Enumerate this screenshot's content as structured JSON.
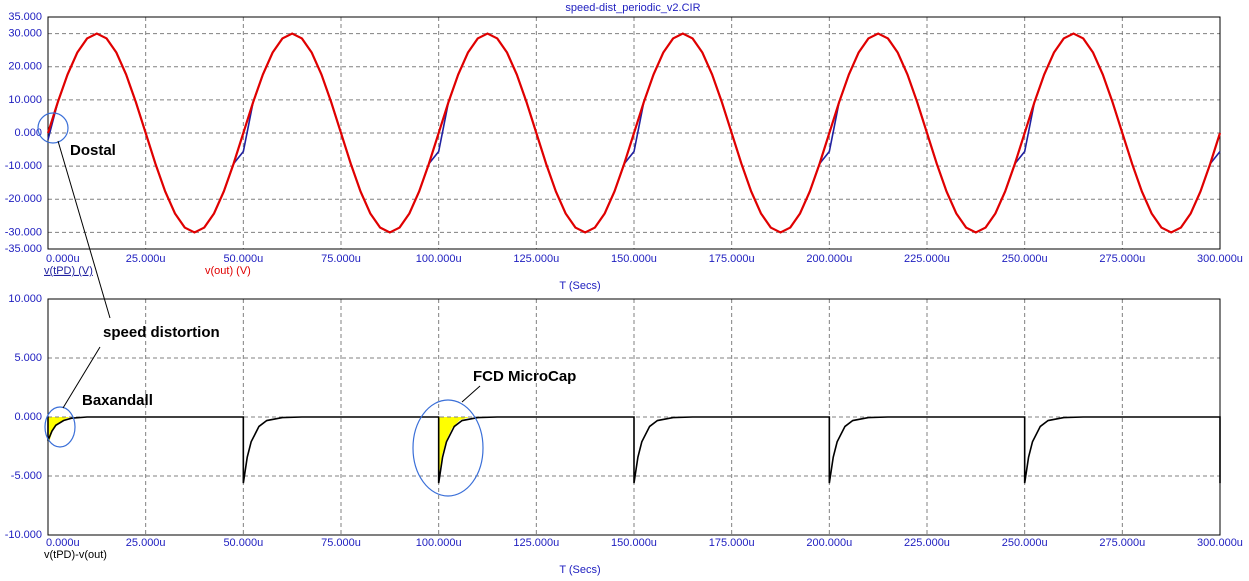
{
  "chart_data": [
    {
      "type": "line",
      "title": "speed-dist_periodic_v2.CIR",
      "xlabel": "T (Secs)",
      "xlim": [
        0,
        300
      ],
      "ylim": [
        -35,
        35
      ],
      "grid": true,
      "xticks": [
        {
          "value": 0,
          "label": "0.000u"
        },
        {
          "value": 25,
          "label": "25.000u"
        },
        {
          "value": 50,
          "label": "50.000u"
        },
        {
          "value": 75,
          "label": "75.000u"
        },
        {
          "value": 100,
          "label": "100.000u"
        },
        {
          "value": 125,
          "label": "125.000u"
        },
        {
          "value": 150,
          "label": "150.000u"
        },
        {
          "value": 175,
          "label": "175.000u"
        },
        {
          "value": 200,
          "label": "200.000u"
        },
        {
          "value": 225,
          "label": "225.000u"
        },
        {
          "value": 250,
          "label": "250.000u"
        },
        {
          "value": 275,
          "label": "275.000u"
        },
        {
          "value": 300,
          "label": "300.000u"
        }
      ],
      "yticks": [
        {
          "value": 35,
          "label": "35.000"
        },
        {
          "value": 30,
          "label": "30.000"
        },
        {
          "value": 20,
          "label": "20.000"
        },
        {
          "value": 10,
          "label": "10.000"
        },
        {
          "value": 0,
          "label": "0.000"
        },
        {
          "value": -10,
          "label": "-10.000"
        },
        {
          "value": -20,
          "label": "-20.000"
        },
        {
          "value": -30,
          "label": "-30.000"
        },
        {
          "value": -35,
          "label": "-35.000"
        }
      ],
      "annotations": [
        "Dostal",
        "speed distortion"
      ],
      "x": [
        0,
        2.5,
        5,
        7.5,
        10,
        12.5,
        15,
        17.5,
        20,
        22.5,
        25,
        27.5,
        30,
        32.5,
        35,
        37.5,
        40,
        42.5,
        45,
        47.5,
        50,
        52.5,
        55,
        57.5,
        60,
        62.5,
        65,
        67.5,
        70,
        72.5,
        75,
        77.5,
        80,
        82.5,
        85,
        87.5,
        90,
        92.5,
        95,
        97.5,
        100,
        102.5,
        105,
        107.5,
        110,
        112.5,
        115,
        117.5,
        120,
        122.5,
        125,
        127.5,
        130,
        132.5,
        135,
        137.5,
        140,
        142.5,
        145,
        147.5,
        150,
        152.5,
        155,
        157.5,
        160,
        162.5,
        165,
        167.5,
        170,
        172.5,
        175,
        177.5,
        180,
        182.5,
        185,
        187.5,
        190,
        192.5,
        195,
        197.5,
        200,
        202.5,
        205,
        207.5,
        210,
        212.5,
        215,
        217.5,
        220,
        222.5,
        225,
        227.5,
        230,
        232.5,
        235,
        237.5,
        240,
        242.5,
        245,
        247.5,
        250,
        252.5,
        255,
        257.5,
        260,
        262.5,
        265,
        267.5,
        270,
        272.5,
        275,
        277.5,
        280,
        282.5,
        285,
        287.5,
        290,
        292.5,
        295,
        297.5,
        300
      ],
      "series": [
        {
          "name": "v(tPD) (V)",
          "color": "#2020a0",
          "values": [
            -2,
            9.27,
            17.63,
            24.27,
            28.53,
            30,
            28.53,
            24.27,
            17.63,
            9.27,
            0,
            -9.27,
            -17.63,
            -24.27,
            -28.53,
            -30,
            -28.53,
            -24.27,
            -17.63,
            -9.27,
            -5.6,
            9.27,
            17.63,
            24.27,
            28.53,
            30,
            28.53,
            24.27,
            17.63,
            9.27,
            0,
            -9.27,
            -17.63,
            -24.27,
            -28.53,
            -30,
            -28.53,
            -24.27,
            -17.63,
            -9.27,
            -5.6,
            9.27,
            17.63,
            24.27,
            28.53,
            30,
            28.53,
            24.27,
            17.63,
            9.27,
            0,
            -9.27,
            -17.63,
            -24.27,
            -28.53,
            -30,
            -28.53,
            -24.27,
            -17.63,
            -9.27,
            -5.6,
            9.27,
            17.63,
            24.27,
            28.53,
            30,
            28.53,
            24.27,
            17.63,
            9.27,
            0,
            -9.27,
            -17.63,
            -24.27,
            -28.53,
            -30,
            -28.53,
            -24.27,
            -17.63,
            -9.27,
            -5.6,
            9.27,
            17.63,
            24.27,
            28.53,
            30,
            28.53,
            24.27,
            17.63,
            9.27,
            0,
            -9.27,
            -17.63,
            -24.27,
            -28.53,
            -30,
            -28.53,
            -24.27,
            -17.63,
            -9.27,
            -5.6,
            9.27,
            17.63,
            24.27,
            28.53,
            30,
            28.53,
            24.27,
            17.63,
            9.27,
            0,
            -9.27,
            -17.63,
            -24.27,
            -28.53,
            -30,
            -28.53,
            -24.27,
            -17.63,
            -9.27,
            -5.6
          ]
        },
        {
          "name": "v(out) (V)",
          "color": "#e00000",
          "values": [
            0,
            9.27,
            17.63,
            24.27,
            28.53,
            30,
            28.53,
            24.27,
            17.63,
            9.27,
            0,
            -9.27,
            -17.63,
            -24.27,
            -28.53,
            -30,
            -28.53,
            -24.27,
            -17.63,
            -9.27,
            0,
            9.27,
            17.63,
            24.27,
            28.53,
            30,
            28.53,
            24.27,
            17.63,
            9.27,
            0,
            -9.27,
            -17.63,
            -24.27,
            -28.53,
            -30,
            -28.53,
            -24.27,
            -17.63,
            -9.27,
            0,
            9.27,
            17.63,
            24.27,
            28.53,
            30,
            28.53,
            24.27,
            17.63,
            9.27,
            0,
            -9.27,
            -17.63,
            -24.27,
            -28.53,
            -30,
            -28.53,
            -24.27,
            -17.63,
            -9.27,
            0,
            9.27,
            17.63,
            24.27,
            28.53,
            30,
            28.53,
            24.27,
            17.63,
            9.27,
            0,
            -9.27,
            -17.63,
            -24.27,
            -28.53,
            -30,
            -28.53,
            -24.27,
            -17.63,
            -9.27,
            0,
            9.27,
            17.63,
            24.27,
            28.53,
            30,
            28.53,
            24.27,
            17.63,
            9.27,
            0,
            -9.27,
            -17.63,
            -24.27,
            -28.53,
            -30,
            -28.53,
            -24.27,
            -17.63,
            -9.27,
            0,
            9.27,
            17.63,
            24.27,
            28.53,
            30,
            28.53,
            24.27,
            17.63,
            9.27,
            0,
            -9.27,
            -17.63,
            -24.27,
            -28.53,
            -30,
            -28.53,
            -24.27,
            -17.63,
            -9.27,
            0
          ]
        }
      ]
    },
    {
      "type": "line",
      "xlabel": "T (Secs)",
      "xlim": [
        0,
        300
      ],
      "ylim": [
        -10,
        10
      ],
      "grid": true,
      "xticks": [
        {
          "value": 0,
          "label": "0.000u"
        },
        {
          "value": 25,
          "label": "25.000u"
        },
        {
          "value": 50,
          "label": "50.000u"
        },
        {
          "value": 75,
          "label": "75.000u"
        },
        {
          "value": 100,
          "label": "100.000u"
        },
        {
          "value": 125,
          "label": "125.000u"
        },
        {
          "value": 150,
          "label": "150.000u"
        },
        {
          "value": 175,
          "label": "175.000u"
        },
        {
          "value": 200,
          "label": "200.000u"
        },
        {
          "value": 225,
          "label": "225.000u"
        },
        {
          "value": 250,
          "label": "250.000u"
        },
        {
          "value": 275,
          "label": "275.000u"
        },
        {
          "value": 300,
          "label": "300.000u"
        }
      ],
      "yticks": [
        {
          "value": 10,
          "label": "10.000"
        },
        {
          "value": 5,
          "label": "5.000"
        },
        {
          "value": 0,
          "label": "0.000"
        },
        {
          "value": -5,
          "label": "-5.000"
        },
        {
          "value": -10,
          "label": "-10.000"
        }
      ],
      "annotations": [
        "Baxandall",
        "FCD  MicroCap"
      ],
      "x": [
        0,
        0,
        1,
        2,
        4,
        6,
        10,
        15,
        50,
        50,
        51,
        52,
        54,
        56,
        60,
        65,
        100,
        100,
        101,
        102,
        104,
        106,
        110,
        115,
        150,
        150,
        151,
        152,
        154,
        156,
        160,
        165,
        200,
        200,
        201,
        202,
        204,
        206,
        210,
        215,
        250,
        250,
        251,
        252,
        254,
        256,
        260,
        265,
        300,
        300
      ],
      "series": [
        {
          "name": "v(tPD)-v(out)",
          "color": "#000000",
          "values": [
            0,
            -2,
            -1.2,
            -0.7,
            -0.3,
            -0.1,
            0,
            0,
            0,
            -5.6,
            -3.4,
            -2.1,
            -0.8,
            -0.3,
            -0.05,
            0,
            0,
            -5.6,
            -3.4,
            -2.1,
            -0.8,
            -0.3,
            -0.05,
            0,
            0,
            -5.6,
            -3.4,
            -2.1,
            -0.8,
            -0.3,
            -0.05,
            0,
            0,
            -5.6,
            -3.4,
            -2.1,
            -0.8,
            -0.3,
            -0.05,
            0,
            0,
            -5.6,
            -3.4,
            -2.1,
            -0.8,
            -0.3,
            -0.05,
            0,
            0,
            -5.6
          ]
        }
      ]
    }
  ]
}
